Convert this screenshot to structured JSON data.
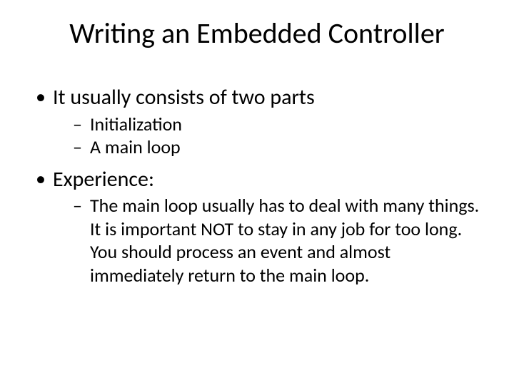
{
  "slide": {
    "title": "Writing an Embedded Controller",
    "background_color": "#ffffff",
    "text_color": "#000000",
    "title_fontsize": 40,
    "body_fontsize_l1": 30,
    "body_fontsize_l2": 26,
    "bullets": [
      {
        "text": "It usually consists of two parts",
        "children": [
          {
            "text": "Initialization"
          },
          {
            "text": "A  main loop"
          }
        ]
      },
      {
        "text": "Experience:",
        "children": [
          {
            "text": "The main loop usually has to deal with many things. It is important NOT to stay in any job for too long. You should process an event and almost immediately return to the main loop."
          }
        ]
      }
    ]
  }
}
